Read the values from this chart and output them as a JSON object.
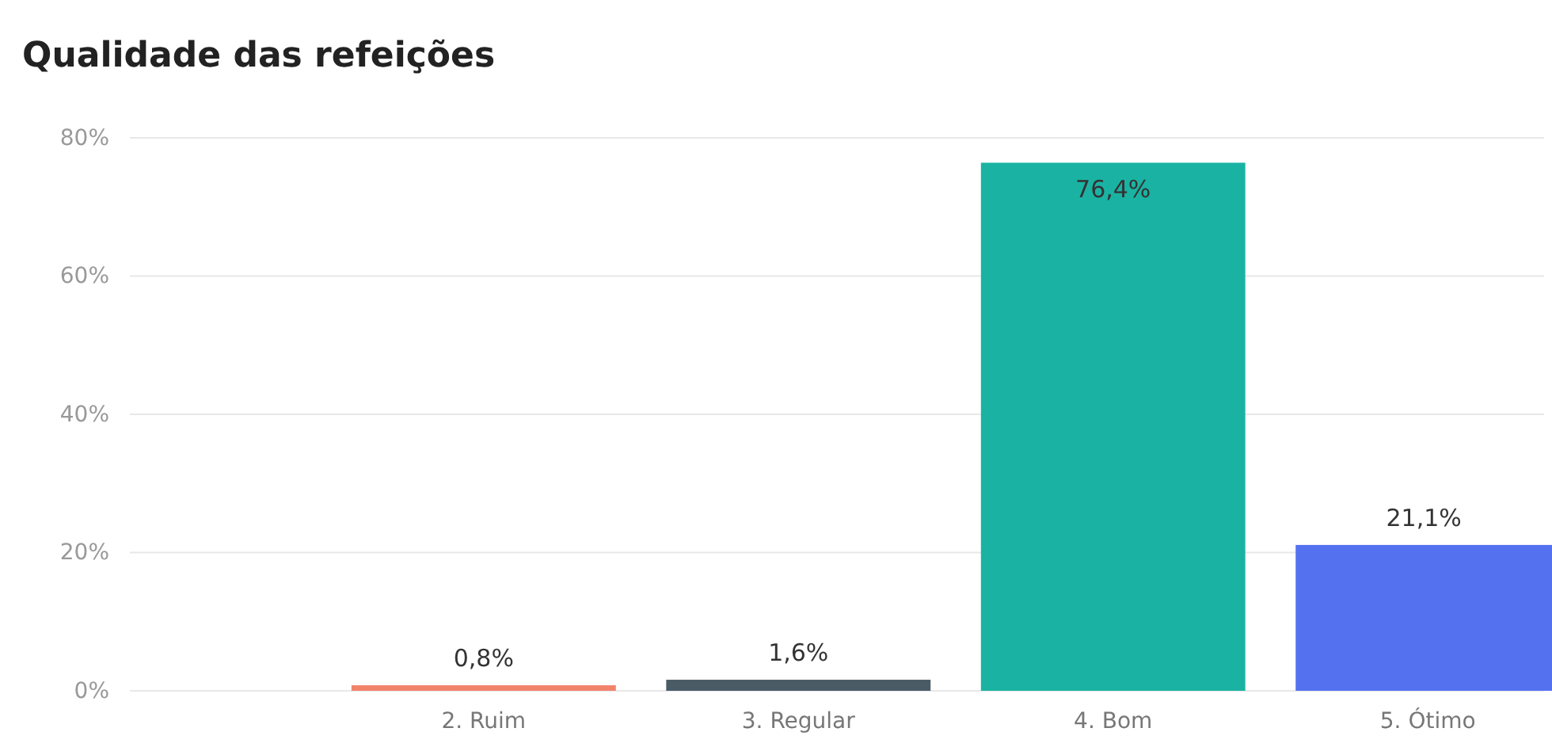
{
  "chart_data": {
    "type": "bar",
    "title": "Qualidade das refeições",
    "categories": [
      "2. Ruim",
      "3. Regular",
      "4. Bom",
      "5. Ótimo"
    ],
    "values": [
      0.8,
      1.6,
      76.4,
      21.1
    ],
    "colors": [
      "#f2836b",
      "#4b5b66",
      "#1ab3a3",
      "#5472f0"
    ],
    "value_labels": [
      "0,8%",
      "1,6%",
      "76,4%",
      "21,1%"
    ],
    "ylim": [
      0,
      80
    ],
    "yticks": [
      {
        "value": 0,
        "label": "0%"
      },
      {
        "value": 20,
        "label": "20%"
      },
      {
        "value": 40,
        "label": "40%"
      },
      {
        "value": 60,
        "label": "60%"
      },
      {
        "value": 80,
        "label": "80%"
      }
    ],
    "grid": "y"
  }
}
